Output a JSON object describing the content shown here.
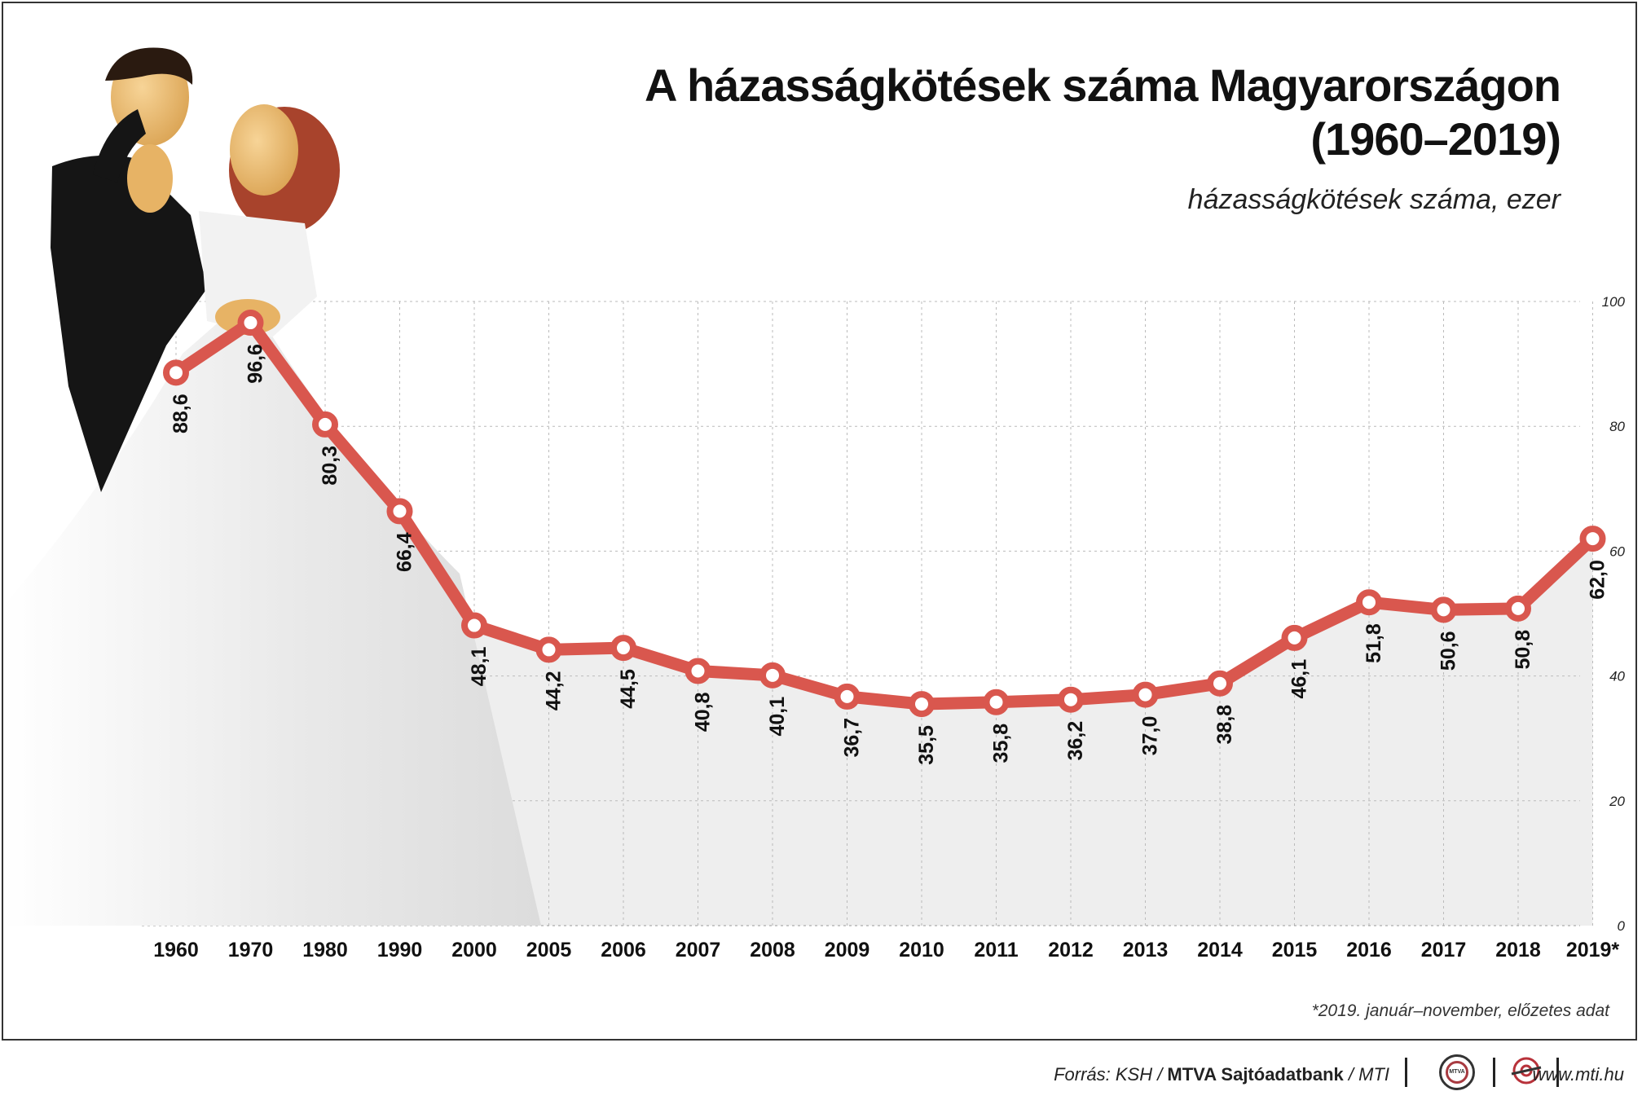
{
  "header": {
    "title_line1": "A házasságkötések száma Magyarországon",
    "title_line2": "(1960–2019)",
    "subtitle": "házasságkötések száma, ezer"
  },
  "footnote": "*2019. január–november, előzetes adat",
  "footer": {
    "source_prefix": "Forrás: KSH / ",
    "source_bold": "MTVA Sajtóadatbank",
    "source_suffix": " / MTI",
    "logo1_text": "MTVA",
    "url": "www.mti.hu"
  },
  "colors": {
    "line": "#d9574e",
    "grid": "#bbbbbb",
    "area": "#eeeeee"
  },
  "chart_data": {
    "type": "line",
    "categories": [
      "1960",
      "1970",
      "1980",
      "1990",
      "2000",
      "2005",
      "2006",
      "2007",
      "2008",
      "2009",
      "2010",
      "2011",
      "2012",
      "2013",
      "2014",
      "2015",
      "2016",
      "2017",
      "2018",
      "2019*"
    ],
    "values": [
      88.6,
      96.6,
      80.3,
      66.4,
      48.1,
      44.2,
      44.5,
      40.8,
      40.1,
      36.7,
      35.5,
      35.8,
      36.2,
      37.0,
      38.8,
      46.1,
      51.8,
      50.6,
      50.8,
      62.0
    ],
    "labels": [
      "88,6",
      "96,6",
      "80,3",
      "66,4",
      "48,1",
      "44,2",
      "44,5",
      "40,8",
      "40,1",
      "36,7",
      "35,5",
      "35,8",
      "36,2",
      "37,0",
      "38,8",
      "46,1",
      "51,8",
      "50,6",
      "50,8",
      "62,0"
    ],
    "yticks": [
      "0",
      "20",
      "40",
      "60",
      "80",
      "100"
    ],
    "ylim": [
      0,
      100
    ],
    "grid": true
  }
}
